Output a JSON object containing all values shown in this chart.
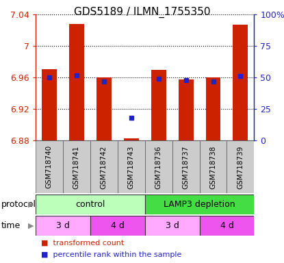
{
  "title": "GDS5189 / ILMN_1755350",
  "samples": [
    "GSM718740",
    "GSM718741",
    "GSM718742",
    "GSM718743",
    "GSM718736",
    "GSM718737",
    "GSM718738",
    "GSM718739"
  ],
  "bar_values": [
    6.971,
    7.028,
    6.96,
    6.883,
    6.97,
    6.958,
    6.96,
    7.027
  ],
  "percentile_ranks": [
    50,
    52,
    47,
    18,
    49,
    48,
    47,
    51
  ],
  "ymin": 6.88,
  "ymax": 7.04,
  "yticks": [
    6.88,
    6.92,
    6.96,
    7.0,
    7.04
  ],
  "ytick_labels": [
    "6.88",
    "6.92",
    "6.96",
    "7",
    "7.04"
  ],
  "right_yticks": [
    0,
    25,
    50,
    75,
    100
  ],
  "right_ytick_labels": [
    "0",
    "25",
    "50",
    "75",
    "100%"
  ],
  "bar_color": "#cc2200",
  "percentile_color": "#2222cc",
  "bar_bottom": 6.88,
  "protocol_groups": [
    {
      "label": "control",
      "start": 0,
      "end": 4,
      "color": "#bbffbb"
    },
    {
      "label": "LAMP3 depletion",
      "start": 4,
      "end": 8,
      "color": "#44dd44"
    }
  ],
  "time_groups": [
    {
      "label": "3 d",
      "start": 0,
      "end": 2,
      "color": "#ffaaff"
    },
    {
      "label": "4 d",
      "start": 2,
      "end": 4,
      "color": "#ee55ee"
    },
    {
      "label": "3 d",
      "start": 4,
      "end": 6,
      "color": "#ffaaff"
    },
    {
      "label": "4 d",
      "start": 6,
      "end": 8,
      "color": "#ee55ee"
    }
  ],
  "bar_color_legend": "#cc2200",
  "percentile_color_legend": "#2222cc",
  "left_tick_color": "#cc2200",
  "right_tick_color": "#2222cc"
}
